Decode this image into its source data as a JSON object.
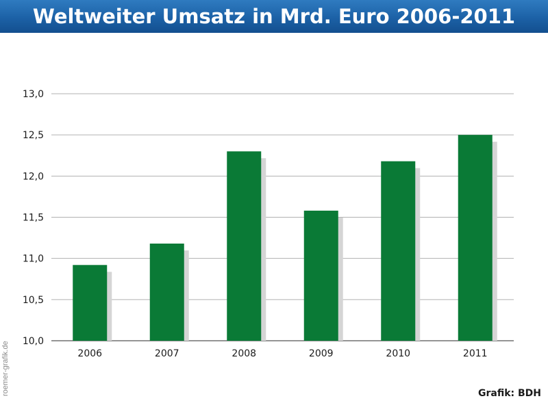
{
  "header": {
    "title": "Weltweiter Umsatz in Mrd. Euro 2006-2011"
  },
  "footer": {
    "credit": "Grafik: BDH",
    "watermark": "roemer-grafik.de"
  },
  "colors": {
    "header": "#1c61a6",
    "bar": "#0a7a36",
    "shadow": "#d5d5d5",
    "grid": "#b0b0b0"
  },
  "chart_data": {
    "type": "bar",
    "title": "Weltweiter Umsatz in Mrd. Euro 2006-2011",
    "xlabel": "",
    "ylabel": "",
    "categories": [
      "2006",
      "2007",
      "2008",
      "2009",
      "2010",
      "2011"
    ],
    "values": [
      10.92,
      11.18,
      12.3,
      11.58,
      12.18,
      12.5
    ],
    "ylim": [
      10.0,
      13.0
    ],
    "yticks": [
      10.0,
      10.5,
      11.0,
      11.5,
      12.0,
      12.5,
      13.0
    ],
    "ytick_labels": [
      "10,0",
      "10,5",
      "11,0",
      "11,5",
      "12,0",
      "12,5",
      "13,0"
    ],
    "grid": true,
    "legend": "none"
  }
}
